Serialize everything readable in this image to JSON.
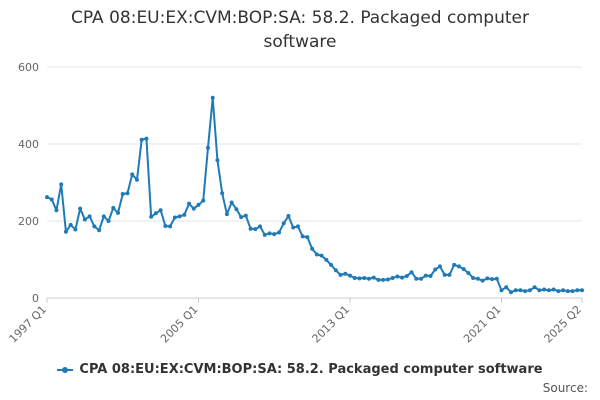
{
  "title_line1": "CPA 08:EU:EX:CVM:BOP:SA: 58.2. Packaged computer",
  "title_line2": "software",
  "legend_label": "CPA 08:EU:EX:CVM:BOP:SA: 58.2. Packaged computer software",
  "source_label": "Source:",
  "series_color": "#1f7bb8",
  "chart_data": {
    "type": "line",
    "title": "CPA 08:EU:EX:CVM:BOP:SA: 58.2. Packaged computer software",
    "xlabel": "",
    "ylabel": "",
    "ylim": [
      0,
      600
    ],
    "yticks": [
      0,
      200,
      400,
      600
    ],
    "xtick_labels": [
      "1997 Q1",
      "2005 Q1",
      "2013 Q1",
      "2021 Q1",
      "2025 Q2"
    ],
    "grid": true,
    "legend_position": "bottom",
    "series": [
      {
        "name": "CPA 08:EU:EX:CVM:BOP:SA: 58.2. Packaged computer software",
        "start_quarter": "1997 Q1",
        "values": [
          262,
          256,
          228,
          295,
          172,
          190,
          178,
          232,
          204,
          212,
          186,
          176,
          212,
          200,
          234,
          221,
          270,
          272,
          321,
          307,
          411,
          414,
          211,
          220,
          228,
          187,
          186,
          209,
          212,
          216,
          245,
          232,
          242,
          253,
          390,
          520,
          358,
          272,
          218,
          248,
          231,
          210,
          214,
          180,
          179,
          186,
          164,
          168,
          166,
          170,
          194,
          213,
          183,
          186,
          160,
          158,
          128,
          113,
          110,
          99,
          86,
          72,
          60,
          63,
          58,
          52,
          51,
          52,
          50,
          53,
          47,
          47,
          48,
          52,
          56,
          53,
          57,
          67,
          50,
          50,
          58,
          57,
          74,
          82,
          60,
          60,
          86,
          82,
          75,
          65,
          52,
          50,
          45,
          51,
          49,
          50,
          20,
          28,
          15,
          20,
          20,
          18,
          20,
          28,
          20,
          22,
          20,
          22,
          18,
          20,
          18,
          18,
          20,
          20
        ]
      }
    ]
  }
}
